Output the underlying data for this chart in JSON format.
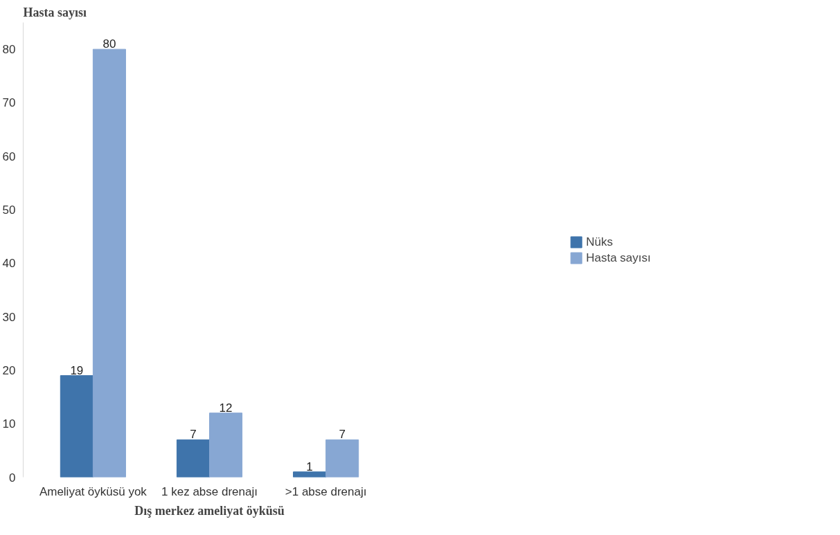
{
  "chart_data": {
    "type": "bar",
    "ylabel": "Hasta sayısı",
    "xlabel": "Dış merkez ameliyat öyküsü",
    "categories": [
      "Ameliyat öyküsü yok",
      "1 kez abse drenajı",
      ">1 abse drenajı"
    ],
    "series": [
      {
        "name": "Nüks",
        "color": "#3f74ab",
        "values": [
          19,
          7,
          1
        ]
      },
      {
        "name": "Hasta sayısı",
        "color": "#87a7d3",
        "values": [
          80,
          12,
          7
        ]
      }
    ],
    "ylim": [
      0,
      85
    ],
    "yticks": [
      0,
      10,
      20,
      30,
      40,
      50,
      60,
      70,
      80
    ],
    "data_labels": true,
    "grid": false,
    "legend": "right"
  }
}
